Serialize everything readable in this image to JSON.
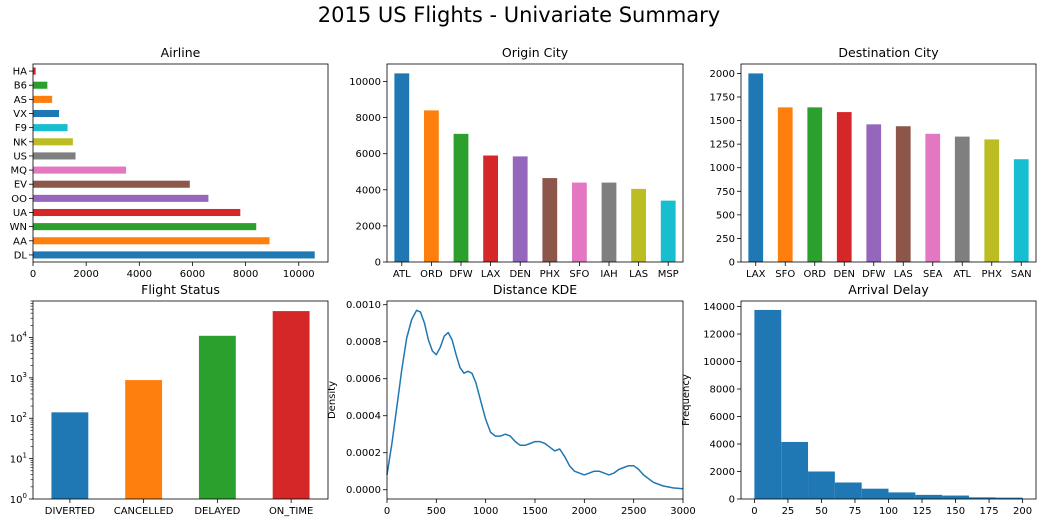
{
  "figure_title": "2015 US Flights - Univariate Summary",
  "palette": [
    "#1f77b4",
    "#ff7f0e",
    "#2ca02c",
    "#d62728",
    "#9467bd",
    "#8c564b",
    "#e377c2",
    "#7f7f7f",
    "#bcbd22",
    "#17becf"
  ],
  "chart_data": [
    {
      "type": "bar",
      "orientation": "horizontal",
      "title": "Airline",
      "xlabel": "",
      "ylabel": "",
      "categories": [
        "DL",
        "AA",
        "WN",
        "UA",
        "OO",
        "EV",
        "MQ",
        "US",
        "NK",
        "F9",
        "VX",
        "AS",
        "B6",
        "HA"
      ],
      "values": [
        10600,
        8900,
        8400,
        7800,
        6600,
        5900,
        3500,
        1600,
        1500,
        1300,
        980,
        720,
        540,
        100
      ],
      "xlim": [
        0,
        11100
      ],
      "xticks": [
        0,
        2000,
        4000,
        6000,
        8000,
        10000
      ],
      "tick_labels": [
        "0",
        "2000",
        "4000",
        "6000",
        "8000",
        "10000"
      ]
    },
    {
      "type": "bar",
      "title": "Origin City",
      "xlabel": "",
      "ylabel": "",
      "categories": [
        "ATL",
        "ORD",
        "DFW",
        "LAX",
        "DEN",
        "PHX",
        "SFO",
        "IAH",
        "LAS",
        "MSP"
      ],
      "values": [
        10450,
        8400,
        7100,
        5900,
        5850,
        4650,
        4400,
        4400,
        4050,
        3400
      ],
      "ylim": [
        0,
        10970
      ],
      "yticks": [
        0,
        2000,
        4000,
        6000,
        8000,
        10000
      ],
      "tick_labels": [
        "0",
        "2000",
        "4000",
        "6000",
        "8000",
        "10000"
      ]
    },
    {
      "type": "bar",
      "title": "Destination City",
      "xlabel": "",
      "ylabel": "",
      "categories": [
        "LAX",
        "SFO",
        "ORD",
        "DEN",
        "DFW",
        "LAS",
        "SEA",
        "ATL",
        "PHX",
        "SAN"
      ],
      "values": [
        2000,
        1640,
        1640,
        1590,
        1460,
        1440,
        1360,
        1330,
        1300,
        1090
      ],
      "ylim": [
        0,
        2100
      ],
      "yticks": [
        0,
        250,
        500,
        750,
        1000,
        1250,
        1500,
        1750,
        2000
      ],
      "tick_labels": [
        "0",
        "250",
        "500",
        "750",
        "1000",
        "1250",
        "1500",
        "1750",
        "2000"
      ]
    },
    {
      "type": "bar",
      "title": "Flight Status",
      "xlabel": "",
      "ylabel": "",
      "scale": "log",
      "categories": [
        "DIVERTED",
        "CANCELLED",
        "DELAYED",
        "ON_TIME"
      ],
      "values": [
        140,
        880,
        11000,
        45000
      ],
      "ylim": [
        1,
        80000
      ],
      "yticks": [
        1,
        10,
        100,
        1000,
        10000
      ],
      "tick_labels": [
        {
          "base": "10",
          "exp": "0"
        },
        {
          "base": "10",
          "exp": "1"
        },
        {
          "base": "10",
          "exp": "2"
        },
        {
          "base": "10",
          "exp": "3"
        },
        {
          "base": "10",
          "exp": "4"
        }
      ]
    },
    {
      "type": "line",
      "title": "Distance KDE",
      "xlabel": "",
      "ylabel": "Density",
      "x": [
        0,
        50,
        100,
        150,
        200,
        250,
        300,
        340,
        380,
        420,
        460,
        500,
        540,
        580,
        620,
        660,
        700,
        740,
        780,
        820,
        860,
        900,
        950,
        1000,
        1050,
        1100,
        1150,
        1200,
        1250,
        1300,
        1350,
        1400,
        1450,
        1500,
        1550,
        1600,
        1650,
        1700,
        1750,
        1800,
        1850,
        1900,
        2000,
        2050,
        2100,
        2150,
        2200,
        2250,
        2300,
        2350,
        2400,
        2450,
        2500,
        2550,
        2600,
        2700,
        2800,
        2900,
        3000
      ],
      "y": [
        8e-05,
        0.00025,
        0.00045,
        0.00065,
        0.00082,
        0.00092,
        0.00097,
        0.00096,
        0.0009,
        0.00081,
        0.00075,
        0.00073,
        0.00077,
        0.00083,
        0.00085,
        0.00081,
        0.00073,
        0.00066,
        0.00063,
        0.00064,
        0.00063,
        0.00058,
        0.00048,
        0.00038,
        0.00031,
        0.00029,
        0.00029,
        0.0003,
        0.00029,
        0.00026,
        0.00024,
        0.00024,
        0.00025,
        0.00026,
        0.00026,
        0.00025,
        0.00023,
        0.00021,
        0.00022,
        0.00018,
        0.00013,
        0.0001,
        8e-05,
        9e-05,
        0.0001,
        0.0001,
        9e-05,
        8e-05,
        9e-05,
        0.00011,
        0.00012,
        0.00013,
        0.00013,
        0.00011,
        8e-05,
        4e-05,
        2e-05,
        1e-05,
        5e-06
      ],
      "xlim": [
        0,
        3000
      ],
      "ylim": [
        -5e-05,
        0.00102
      ],
      "xticks": [
        0,
        500,
        1000,
        1500,
        2000,
        2500,
        3000
      ],
      "yticks": [
        0,
        0.0002,
        0.0004,
        0.0006,
        0.0008,
        0.001
      ],
      "x_tick_labels": [
        "0",
        "500",
        "1000",
        "1500",
        "2000",
        "2500",
        "3000"
      ],
      "y_tick_labels": [
        "0.0000",
        "0.0002",
        "0.0004",
        "0.0006",
        "0.0008",
        "0.0010"
      ]
    },
    {
      "type": "histogram",
      "title": "Arrival Delay",
      "xlabel": "",
      "ylabel": "Frequency",
      "bin_edges": [
        0,
        20,
        40,
        60,
        80,
        100,
        120,
        140,
        160,
        180,
        200
      ],
      "counts": [
        13750,
        4150,
        2000,
        1200,
        750,
        480,
        300,
        250,
        120,
        100
      ],
      "xlim": [
        -10,
        210
      ],
      "ylim": [
        0,
        14400
      ],
      "xticks": [
        0,
        25,
        50,
        75,
        100,
        125,
        150,
        175,
        200
      ],
      "yticks": [
        0,
        2000,
        4000,
        6000,
        8000,
        10000,
        12000,
        14000
      ],
      "x_tick_labels": [
        "0",
        "25",
        "50",
        "75",
        "100",
        "125",
        "150",
        "175",
        "200"
      ],
      "y_tick_labels": [
        "0",
        "2000",
        "4000",
        "6000",
        "8000",
        "10000",
        "12000",
        "14000"
      ]
    }
  ]
}
